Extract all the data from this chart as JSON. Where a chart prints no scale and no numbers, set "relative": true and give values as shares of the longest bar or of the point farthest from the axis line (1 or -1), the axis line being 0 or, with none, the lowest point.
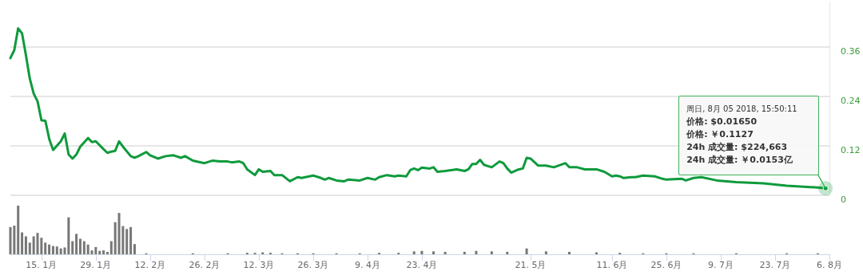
{
  "chart_data": [
    {
      "type": "line",
      "x": [
        "2018-01-07",
        "2018-01-08",
        "2018-01-09",
        "2018-01-10",
        "2018-01-11",
        "2018-01-12",
        "2018-01-13",
        "2018-01-14",
        "2018-01-15",
        "2018-01-16",
        "2018-01-17",
        "2018-01-18",
        "2018-01-20",
        "2018-01-21",
        "2018-01-22",
        "2018-01-23",
        "2018-01-24",
        "2018-01-25",
        "2018-01-27",
        "2018-01-28",
        "2018-01-29",
        "2018-01-31",
        "2018-02-01",
        "2018-02-02",
        "2018-02-03",
        "2018-02-04",
        "2018-02-05",
        "2018-02-07",
        "2018-02-08",
        "2018-02-09",
        "2018-02-11",
        "2018-02-12",
        "2018-02-14",
        "2018-02-16",
        "2018-02-18",
        "2018-02-20",
        "2018-02-21",
        "2018-02-23",
        "2018-02-26",
        "2018-02-28",
        "2018-03-02",
        "2018-03-04",
        "2018-03-05",
        "2018-03-07",
        "2018-03-08",
        "2018-03-09",
        "2018-03-11",
        "2018-03-12",
        "2018-03-13",
        "2018-03-15",
        "2018-03-16",
        "2018-03-18",
        "2018-03-20",
        "2018-03-22",
        "2018-03-23",
        "2018-03-26",
        "2018-03-28",
        "2018-03-29",
        "2018-03-30",
        "2018-04-01",
        "2018-04-03",
        "2018-04-04",
        "2018-04-07",
        "2018-04-09",
        "2018-04-11",
        "2018-04-12",
        "2018-04-14",
        "2018-04-16",
        "2018-04-17",
        "2018-04-19",
        "2018-04-20",
        "2018-04-21",
        "2018-04-22",
        "2018-04-23",
        "2018-04-25",
        "2018-04-26",
        "2018-04-27",
        "2018-04-29",
        "2018-05-02",
        "2018-05-04",
        "2018-05-05",
        "2018-05-06",
        "2018-05-07",
        "2018-05-08",
        "2018-05-09",
        "2018-05-11",
        "2018-05-13",
        "2018-05-14",
        "2018-05-15",
        "2018-05-16",
        "2018-05-18",
        "2018-05-19",
        "2018-05-20",
        "2018-05-21",
        "2018-05-23",
        "2018-05-25",
        "2018-05-27",
        "2018-05-30",
        "2018-05-31",
        "2018-06-02",
        "2018-06-04",
        "2018-06-07",
        "2018-06-09",
        "2018-06-11",
        "2018-06-12",
        "2018-06-13",
        "2018-06-14",
        "2018-06-16",
        "2018-06-17",
        "2018-06-19",
        "2018-06-22",
        "2018-06-24",
        "2018-06-25",
        "2018-06-29",
        "2018-06-30",
        "2018-07-02",
        "2018-07-04",
        "2018-07-08",
        "2018-07-13",
        "2018-07-20",
        "2018-07-26",
        "2018-08-03",
        "2018-08-05"
      ],
      "series": [
        {
          "color": "#0f9a3c",
          "values": [
            0.333,
            0.352,
            0.405,
            0.393,
            0.34,
            0.283,
            0.247,
            0.228,
            0.182,
            0.181,
            0.137,
            0.11,
            0.131,
            0.15,
            0.099,
            0.089,
            0.099,
            0.118,
            0.139,
            0.129,
            0.131,
            0.112,
            0.103,
            0.106,
            0.108,
            0.131,
            0.118,
            0.095,
            0.091,
            0.095,
            0.105,
            0.097,
            0.089,
            0.095,
            0.097,
            0.091,
            0.095,
            0.084,
            0.078,
            0.084,
            0.082,
            0.082,
            0.08,
            0.082,
            0.078,
            0.063,
            0.049,
            0.063,
            0.057,
            0.059,
            0.049,
            0.049,
            0.034,
            0.044,
            0.042,
            0.048,
            0.042,
            0.038,
            0.042,
            0.036,
            0.034,
            0.038,
            0.036,
            0.042,
            0.038,
            0.044,
            0.049,
            0.046,
            0.048,
            0.046,
            0.061,
            0.065,
            0.061,
            0.067,
            0.065,
            0.068,
            0.057,
            0.059,
            0.063,
            0.059,
            0.063,
            0.076,
            0.076,
            0.086,
            0.074,
            0.068,
            0.082,
            0.078,
            0.065,
            0.055,
            0.063,
            0.065,
            0.091,
            0.089,
            0.072,
            0.072,
            0.068,
            0.078,
            0.068,
            0.068,
            0.063,
            0.063,
            0.057,
            0.046,
            0.048,
            0.046,
            0.042,
            0.044,
            0.044,
            0.048,
            0.046,
            0.04,
            0.038,
            0.04,
            0.036,
            0.042,
            0.044,
            0.036,
            0.032,
            0.029,
            0.023,
            0.019,
            0.017
          ]
        }
      ],
      "xlim": [
        "2018-01-07",
        "2018-08-06"
      ],
      "ylim": [
        0,
        0.47
      ],
      "yticks": [
        0,
        0.12,
        0.24,
        0.36
      ],
      "grid": "y",
      "tick_labels": "y",
      "marker": "none",
      "line_style": "solid",
      "annotations": [
        "周日, 8月 05 2018, 15:50:11\n价格: $0.01650\n价格: ￥0.1127\n24h 成交量: $224,663\n24h 成交量: ￥0.0153亿"
      ]
    },
    {
      "type": "bar",
      "relative": true,
      "x": [
        "2018-01-07",
        "2018-01-08",
        "2018-01-09",
        "2018-01-10",
        "2018-01-11",
        "2018-01-12",
        "2018-01-13",
        "2018-01-14",
        "2018-01-15",
        "2018-01-16",
        "2018-01-17",
        "2018-01-18",
        "2018-01-19",
        "2018-01-20",
        "2018-01-21",
        "2018-01-22",
        "2018-01-23",
        "2018-01-24",
        "2018-01-25",
        "2018-01-26",
        "2018-01-27",
        "2018-01-28",
        "2018-01-29",
        "2018-01-30",
        "2018-01-31",
        "2018-02-01",
        "2018-02-02",
        "2018-02-03",
        "2018-02-04",
        "2018-02-05",
        "2018-02-06",
        "2018-02-07",
        "2018-02-08",
        "2018-02-11",
        "2018-02-23",
        "2018-03-04",
        "2018-03-09",
        "2018-03-11",
        "2018-03-13",
        "2018-03-15",
        "2018-03-18",
        "2018-03-22",
        "2018-03-26",
        "2018-04-01",
        "2018-04-07",
        "2018-04-12",
        "2018-04-17",
        "2018-04-21",
        "2018-04-23",
        "2018-04-26",
        "2018-04-29",
        "2018-05-04",
        "2018-05-07",
        "2018-05-11",
        "2018-05-15",
        "2018-05-20",
        "2018-05-25",
        "2018-05-31",
        "2018-06-07",
        "2018-06-13",
        "2018-06-19",
        "2018-06-25",
        "2018-07-02",
        "2018-07-13",
        "2018-07-26",
        "2018-08-03"
      ],
      "series": [
        {
          "color": "#777777",
          "values": [
            0.56,
            0.59,
            1,
            0.45,
            0.37,
            0.24,
            0.37,
            0.44,
            0.34,
            0.24,
            0.2,
            0.17,
            0.16,
            0.12,
            0.14,
            0.76,
            0.27,
            0.42,
            0.32,
            0.27,
            0.2,
            0.08,
            0.15,
            0.07,
            0.08,
            0.05,
            0.27,
            0.66,
            0.85,
            0.58,
            0.52,
            0.56,
            0.21,
            0.02,
            0.02,
            0.02,
            0.03,
            0.03,
            0.04,
            0.03,
            0.02,
            0.02,
            0.02,
            0.02,
            0.02,
            0.03,
            0.03,
            0.06,
            0.07,
            0.06,
            0.05,
            0.05,
            0.07,
            0.06,
            0.05,
            0.12,
            0.06,
            0.05,
            0.04,
            0.03,
            0.02,
            0.02,
            0.02,
            0.02,
            0.02,
            0.02
          ]
        }
      ],
      "xlim": [
        "2018-01-07",
        "2018-08-06"
      ],
      "xticks": [
        {
          "value": "2018-01-15",
          "label": "15. 1月"
        },
        {
          "value": "2018-01-29",
          "label": "29. 1月"
        },
        {
          "value": "2018-02-12",
          "label": "12. 2月"
        },
        {
          "value": "2018-02-26",
          "label": "26. 2月"
        },
        {
          "value": "2018-03-12",
          "label": "12. 3月"
        },
        {
          "value": "2018-03-26",
          "label": "26. 3月"
        },
        {
          "value": "2018-04-09",
          "label": "9. 4月"
        },
        {
          "value": "2018-04-23",
          "label": "23. 4月"
        },
        {
          "value": "2018-05-21",
          "label": "21. 5月"
        },
        {
          "value": "2018-06-11",
          "label": "11. 6月"
        },
        {
          "value": "2018-06-25",
          "label": "25. 6月"
        },
        {
          "value": "2018-07-09",
          "label": "9. 7月"
        },
        {
          "value": "2018-07-23",
          "label": "23. 7月"
        },
        {
          "value": "2018-08-06",
          "label": "6. 8月"
        }
      ],
      "grid": false,
      "tick_labels": "x"
    }
  ]
}
